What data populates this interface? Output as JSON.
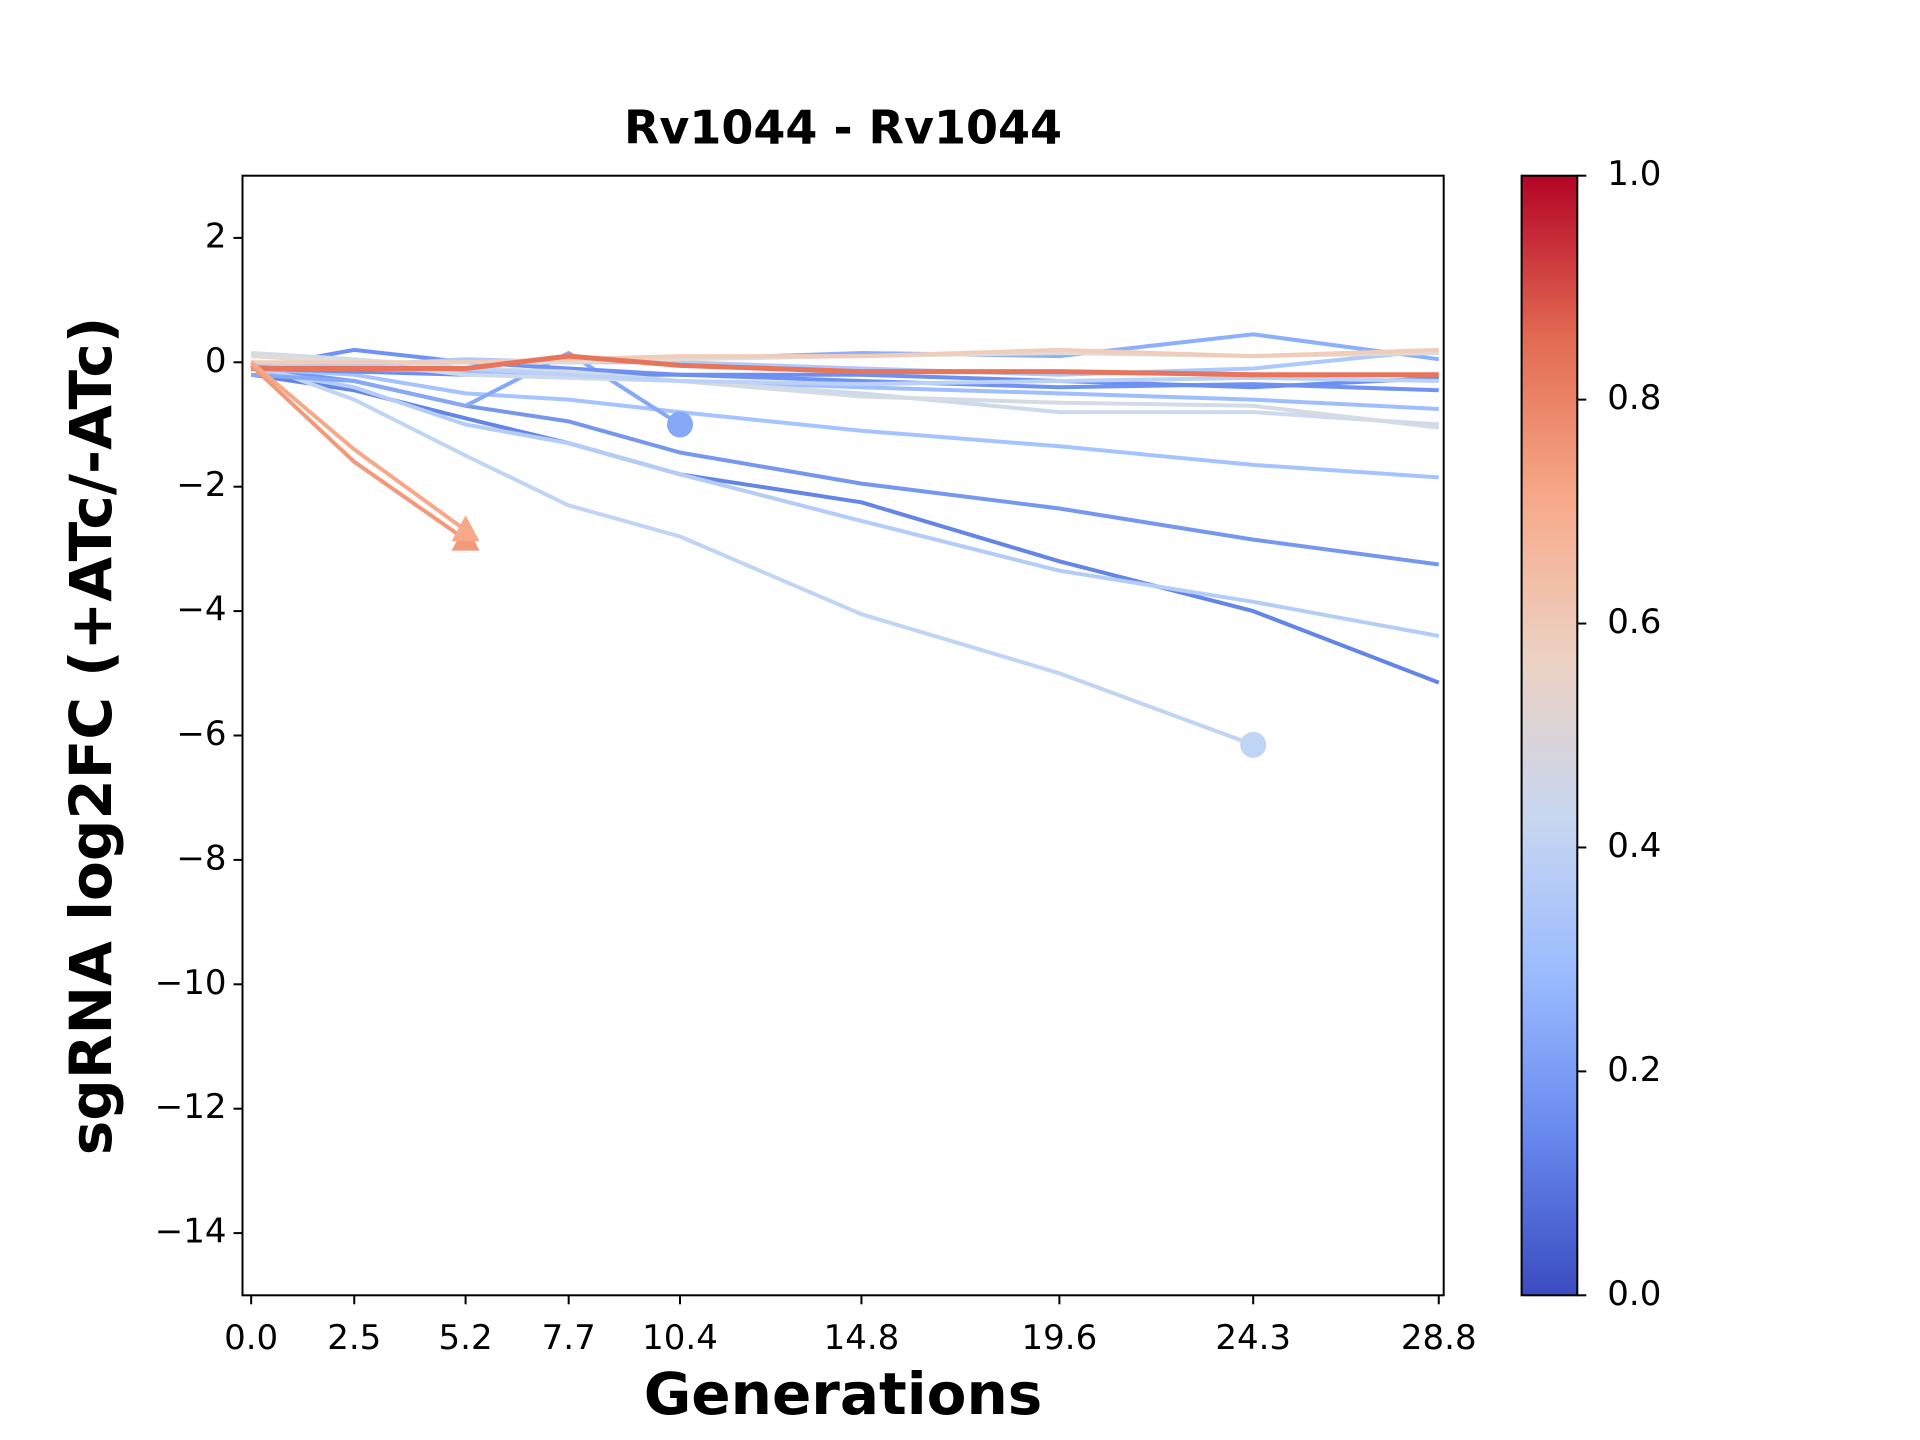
{
  "chart_data": {
    "type": "line",
    "title": "Rv1044 - Rv1044",
    "xlabel": "Generations",
    "ylabel": "sgRNA log2FC (+ATc/-ATc)",
    "x": [
      0,
      2.5,
      5.2,
      7.7,
      10.4,
      14.8,
      19.6,
      24.3,
      28.8
    ],
    "xlim": [
      -0.21,
      28.92
    ],
    "xticks": [
      {
        "value": 0,
        "label": "0.0"
      },
      2.5,
      5.2,
      7.7,
      10.4,
      14.8,
      19.6,
      24.3,
      28.8
    ],
    "ylim": [
      -15,
      3
    ],
    "yticks": [
      {
        "value": -14,
        "label": "−14"
      },
      {
        "value": -12,
        "label": "−12"
      },
      {
        "value": -10,
        "label": "−10"
      },
      {
        "value": -8,
        "label": "−8"
      },
      {
        "value": -6,
        "label": "−6"
      },
      {
        "value": -4,
        "label": "−4"
      },
      {
        "value": -2,
        "label": "−2"
      },
      0,
      2
    ],
    "series": [
      {
        "color": "#6385e8",
        "values": [
          -0.2,
          -0.45,
          -0.9,
          -1.3,
          -1.8,
          -2.25,
          -3.2,
          -4.0,
          -5.15
        ]
      },
      {
        "color": "#7597ef",
        "values": [
          -0.1,
          -0.3,
          -0.7,
          -0.95,
          -1.45,
          -1.95,
          -2.35,
          -2.85,
          -3.25
        ]
      },
      {
        "color": "#b4cdf8",
        "values": [
          -0.1,
          -0.4,
          -1.0,
          -1.3,
          -1.8,
          -2.55,
          -3.35,
          -3.85,
          -4.4
        ]
      },
      {
        "color": "#c0d4f5",
        "marker": "o",
        "values": [
          0.0,
          -0.6,
          -1.5,
          -2.3,
          -2.8,
          -4.05,
          -5.0,
          -6.15,
          null
        ]
      },
      {
        "color": "#a5c3fe",
        "values": [
          -0.1,
          -0.2,
          -0.5,
          -0.6,
          -0.8,
          -1.1,
          -1.35,
          -1.65,
          -1.85
        ]
      },
      {
        "color": "#86a9f7",
        "marker": "o",
        "values": [
          -0.2,
          -0.3,
          -0.7,
          0.15,
          -1.0,
          null,
          null,
          null,
          null
        ]
      },
      {
        "color": "#7093f3",
        "values": [
          -0.1,
          0.2,
          0.0,
          -0.1,
          -0.2,
          -0.3,
          -0.4,
          -0.35,
          -0.45
        ]
      },
      {
        "color": "#6c8ff1",
        "values": [
          -0.1,
          -0.15,
          -0.2,
          -0.2,
          -0.2,
          -0.2,
          -0.3,
          -0.4,
          -0.25
        ]
      },
      {
        "color": "#8caffe",
        "values": [
          -0.05,
          -0.05,
          0.0,
          0.0,
          0.05,
          0.15,
          0.1,
          0.45,
          0.05
        ]
      },
      {
        "color": "#9ebeff",
        "values": [
          0.0,
          -0.1,
          -0.15,
          -0.2,
          -0.3,
          -0.4,
          -0.5,
          -0.6,
          -0.75
        ]
      },
      {
        "color": "#cdd9ec",
        "values": [
          0.1,
          0.0,
          -0.2,
          -0.25,
          -0.3,
          -0.5,
          -0.8,
          -0.8,
          -1.0
        ]
      },
      {
        "color": "#d5dbe5",
        "values": [
          0.15,
          0.05,
          -0.1,
          -0.15,
          -0.3,
          -0.55,
          -0.65,
          -0.7,
          -1.05
        ]
      },
      {
        "color": "#bbd1f8",
        "values": [
          0.0,
          -0.1,
          -0.1,
          -0.2,
          -0.3,
          -0.35,
          -0.3,
          -0.25,
          -0.3
        ]
      },
      {
        "color": "#aec9fc",
        "values": [
          -0.1,
          -0.05,
          0.05,
          0.0,
          0.0,
          -0.1,
          -0.2,
          -0.1,
          0.2
        ]
      },
      {
        "color": "#e1dad6",
        "values": [
          0.1,
          0.0,
          0.0,
          0.0,
          0.05,
          0.1,
          0.15,
          0.1,
          0.15
        ]
      },
      {
        "color": "#f1ccb8",
        "values": [
          0.0,
          0.0,
          0.0,
          0.05,
          0.1,
          0.1,
          0.2,
          0.1,
          0.2
        ]
      },
      {
        "color": "#e7745b",
        "values": [
          -0.1,
          -0.1,
          -0.1,
          0.1,
          -0.05,
          -0.15,
          -0.15,
          -0.2,
          -0.2
        ]
      },
      {
        "color": "#f4987a",
        "marker": "^",
        "values": [
          -0.05,
          -1.6,
          -2.85,
          null,
          null,
          null,
          null,
          null,
          null
        ]
      },
      {
        "color": "#f7a889",
        "marker": "^",
        "values": [
          0.0,
          -1.4,
          -2.7,
          null,
          null,
          null,
          null,
          null,
          null
        ]
      }
    ],
    "colorbar": {
      "clim": [
        0,
        1
      ],
      "ticks": [
        {
          "value": 0,
          "label": "0.0"
        },
        {
          "value": 0.2,
          "label": "0.2"
        },
        {
          "value": 0.4,
          "label": "0.4"
        },
        {
          "value": 0.6,
          "label": "0.6"
        },
        {
          "value": 0.8,
          "label": "0.8"
        },
        {
          "value": 1,
          "label": "1.0"
        }
      ],
      "colors": [
        "#3b4cc0",
        "#6788ee",
        "#9abbff",
        "#c9d7f0",
        "#edd1c2",
        "#f7a889",
        "#e26952",
        "#b40426"
      ]
    }
  }
}
